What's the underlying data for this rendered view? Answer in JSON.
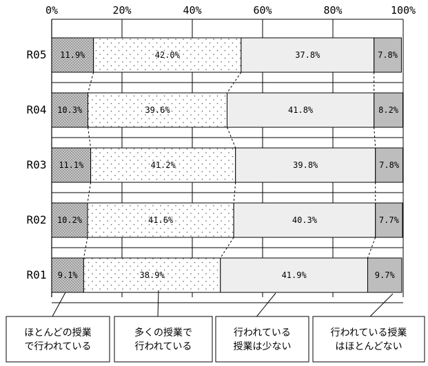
{
  "chart_data": {
    "type": "bar",
    "orientation": "horizontal",
    "stacked": true,
    "normalized_percent": true,
    "categories": [
      "R05",
      "R04",
      "R03",
      "R02",
      "R01"
    ],
    "series": [
      {
        "name": "ほとんどの授業で行われている",
        "label_lines": [
          "ほとんどの授業",
          "で行われている"
        ],
        "values": [
          11.9,
          10.3,
          11.1,
          10.2,
          9.1
        ],
        "labels": [
          "11.9%",
          "10.3%",
          "11.1%",
          "10.2%",
          "9.1%"
        ],
        "fill": "#c4c4c4",
        "pattern": "crosshatch"
      },
      {
        "name": "多くの授業で行われている",
        "label_lines": [
          "多くの授業で",
          "行われている"
        ],
        "values": [
          42.0,
          39.6,
          41.2,
          41.6,
          38.9
        ],
        "labels": [
          "42.0%",
          "39.6%",
          "41.2%",
          "41.6%",
          "38.9%"
        ],
        "fill": "#ffffff",
        "pattern": "dots"
      },
      {
        "name": "行われている授業は少ない",
        "label_lines": [
          "行われている",
          "授業は少ない"
        ],
        "values": [
          37.8,
          41.8,
          39.8,
          40.3,
          41.9
        ],
        "labels": [
          "37.8%",
          "41.8%",
          "39.8%",
          "40.3%",
          "41.9%"
        ],
        "fill": "#eeeeee",
        "pattern": "solid"
      },
      {
        "name": "行われている授業はほとんどない",
        "label_lines": [
          "行われている授業",
          "はほとんどない"
        ],
        "values": [
          7.8,
          8.2,
          7.8,
          7.7,
          9.7
        ],
        "labels": [
          "7.8%",
          "8.2%",
          "7.8%",
          "7.7%",
          "9.7%"
        ],
        "fill": "#bdbdbd",
        "pattern": "solid"
      }
    ],
    "xlim": [
      0,
      100
    ],
    "x_ticks": [
      "0%",
      "20%",
      "40%",
      "60%",
      "80%",
      "100%"
    ],
    "grid": true,
    "legend_position": "bottom",
    "series_connector_lines": "dashed"
  }
}
